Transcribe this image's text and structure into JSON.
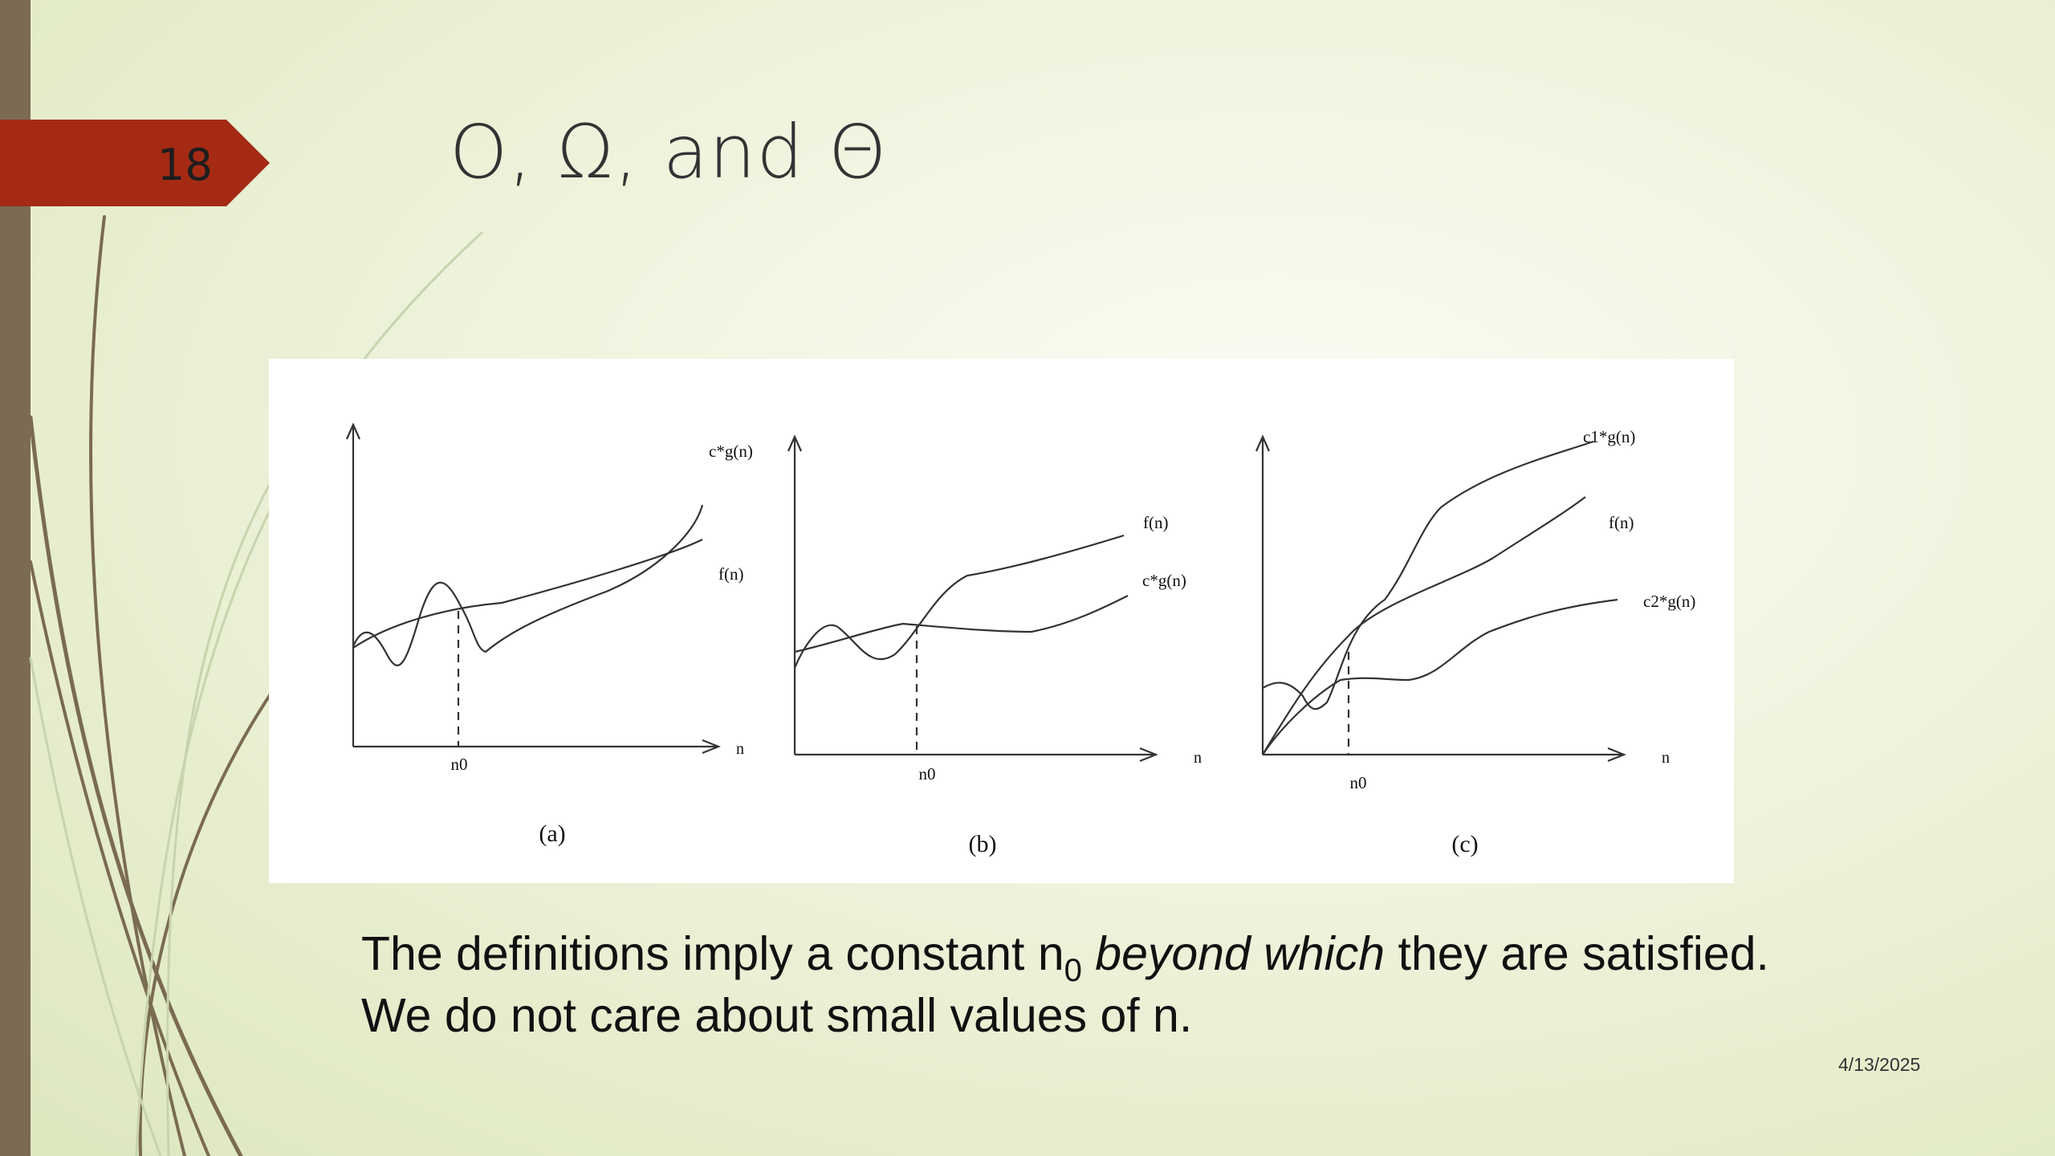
{
  "slide": {
    "number": "18",
    "title": "O, Ω, and Θ",
    "date": "4/13/2025",
    "accent_color": "#a52a14",
    "bar_color": "#7a6b52"
  },
  "body": {
    "part1": "The definitions imply a constant n",
    "subscript": "0",
    "emphasis": "beyond which",
    "part2": " they are satisfied. We do not care about small values of n."
  },
  "figure": {
    "panels": [
      {
        "caption": "(a)",
        "x_axis_label": "n",
        "threshold_label": "n0",
        "curve_labels": [
          "c*g(n)",
          "f(n)"
        ]
      },
      {
        "caption": "(b)",
        "x_axis_label": "n",
        "threshold_label": "n0",
        "curve_labels": [
          "f(n)",
          "c*g(n)"
        ]
      },
      {
        "caption": "(c)",
        "x_axis_label": "n",
        "threshold_label": "n0",
        "curve_labels": [
          "c1*g(n)",
          "f(n)",
          "c2*g(n)"
        ]
      }
    ]
  }
}
